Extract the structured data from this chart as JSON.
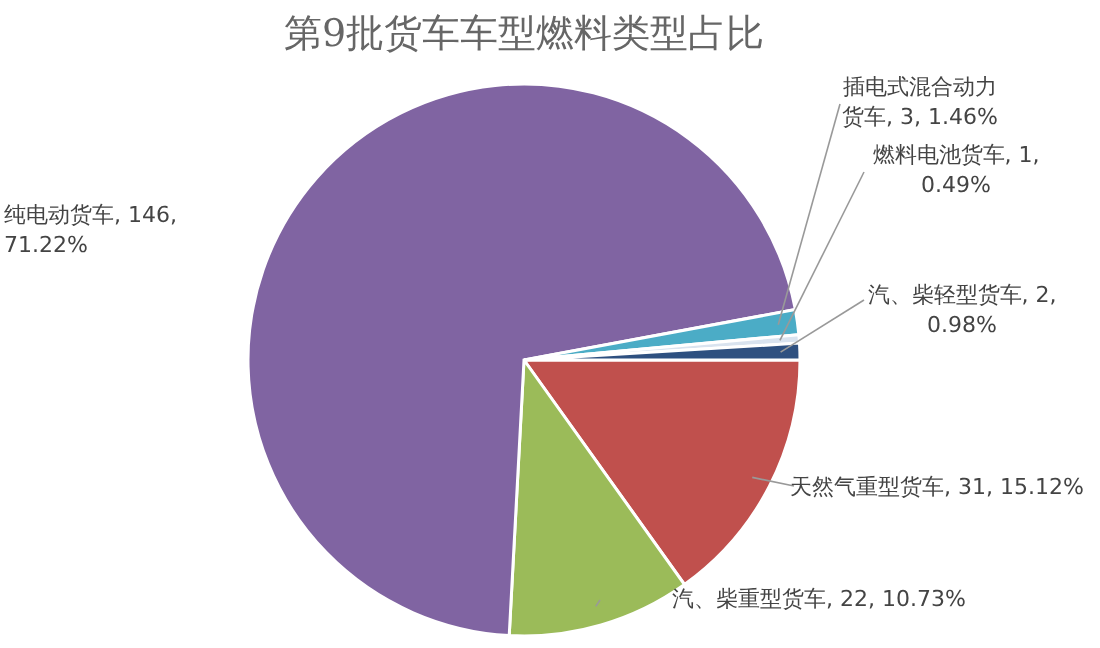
{
  "chart_data": {
    "type": "pie",
    "title": "第9批货车车型燃料类型占比",
    "categories": [
      "天然气重型货车",
      "汽、柴重型货车",
      "纯电动货车",
      "插电式混合动力货车",
      "燃料电池货车",
      "汽、柴轻型货车"
    ],
    "values": [
      31,
      22,
      146,
      3,
      1,
      2
    ],
    "value_labels": [
      "31, 15.12%",
      "22, 10.73%",
      "146, 71.22%",
      "3, 1.46%",
      "1, 0.49%",
      "2, 0.98%"
    ],
    "colors": [
      "#c0504d",
      "#9bbb59",
      "#8064a2",
      "#4bacc6",
      "#d9e3ef",
      "#2e5080"
    ],
    "legend": false
  }
}
